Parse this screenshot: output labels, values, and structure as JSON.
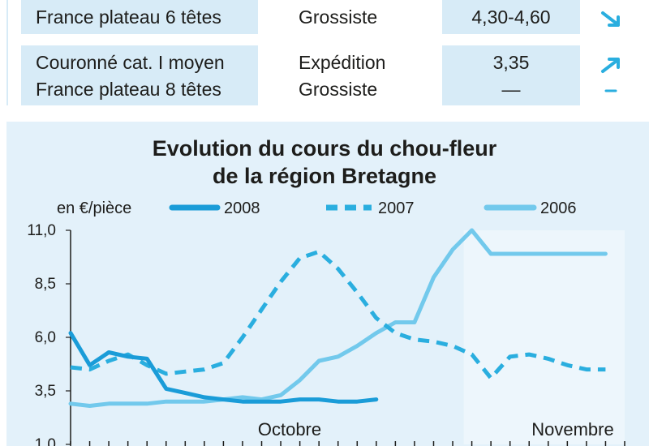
{
  "table": {
    "rows": [
      {
        "product": "France plateau 6 têtes",
        "stage": "Grossiste",
        "price": "4,30-4,60",
        "trend": "down"
      },
      {
        "product": "Couronné cat. I moyen",
        "stage": "Expédition",
        "price": "3,35",
        "trend": "up"
      },
      {
        "product": "France plateau 8 têtes",
        "stage": "Grossiste",
        "price": "—",
        "trend": "flat"
      }
    ]
  },
  "chart_data": {
    "type": "line",
    "title": "Evolution du cours du chou-fleur",
    "subtitle": "de la région Bretagne",
    "ylabel": "en €/pièce",
    "ylim": [
      1.0,
      11.0
    ],
    "yticks": [
      "1,0",
      "3,5",
      "6,0",
      "8,5",
      "11,0"
    ],
    "ytick_values": [
      1.0,
      3.5,
      6.0,
      8.5,
      11.0
    ],
    "xlabels": [
      "Octobre",
      "Novembre"
    ],
    "x_count": 30,
    "legend_position": "top",
    "colors": {
      "2008": "#1a9cd8",
      "2007": "#2aaedf",
      "2006": "#72c9ec",
      "panel": "#e3f1fa",
      "table_band": "#d7ebf7",
      "trend": "#2aaedf"
    },
    "series": [
      {
        "name": "2008",
        "style": "solid",
        "x": [
          0,
          1,
          2,
          3,
          4,
          5,
          6,
          7,
          8,
          9,
          10,
          11,
          12,
          13,
          14,
          15,
          16
        ],
        "y": [
          6.2,
          4.7,
          5.3,
          5.1,
          5.0,
          3.6,
          3.4,
          3.2,
          3.1,
          3.0,
          3.0,
          3.0,
          3.1,
          3.1,
          3.0,
          3.0,
          3.1
        ]
      },
      {
        "name": "2007",
        "style": "dashed",
        "x": [
          0,
          1,
          2,
          3,
          4,
          5,
          6,
          7,
          8,
          9,
          10,
          11,
          12,
          13,
          14,
          15,
          16,
          17,
          18,
          19,
          20,
          21,
          22,
          23,
          24,
          25,
          26,
          27,
          28
        ],
        "y": [
          4.6,
          4.5,
          4.9,
          5.2,
          4.7,
          4.3,
          4.4,
          4.5,
          4.8,
          6.0,
          7.3,
          8.6,
          9.7,
          10.0,
          9.2,
          8.1,
          6.9,
          6.2,
          5.9,
          5.8,
          5.6,
          5.2,
          4.1,
          5.1,
          5.2,
          5.0,
          4.7,
          4.5,
          4.5
        ]
      },
      {
        "name": "2006",
        "style": "solid",
        "x": [
          0,
          1,
          2,
          3,
          4,
          5,
          6,
          7,
          8,
          9,
          10,
          11,
          12,
          13,
          14,
          15,
          16,
          17,
          18,
          19,
          20,
          21,
          22,
          23,
          24,
          25,
          26,
          27,
          28
        ],
        "y": [
          2.9,
          2.8,
          2.9,
          2.9,
          2.9,
          3.0,
          3.0,
          3.0,
          3.1,
          3.2,
          3.1,
          3.3,
          4.0,
          4.9,
          5.1,
          5.6,
          6.2,
          6.7,
          6.7,
          8.8,
          10.1,
          11.0,
          9.9,
          9.9,
          9.9,
          9.9,
          9.9,
          9.9,
          9.9
        ]
      }
    ]
  }
}
